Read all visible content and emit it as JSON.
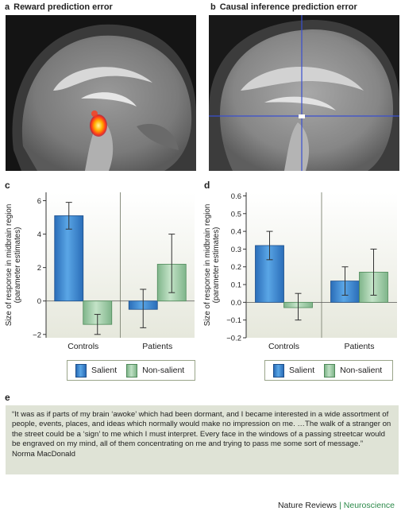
{
  "panel_a": {
    "letter": "a",
    "title": "Reward prediction error"
  },
  "panel_b": {
    "letter": "b",
    "title": "Causal inference prediction error"
  },
  "panel_c": {
    "letter": "c"
  },
  "panel_d": {
    "letter": "d"
  },
  "panel_e": {
    "letter": "e"
  },
  "legend": {
    "salient": "Salient",
    "non_salient": "Non-salient"
  },
  "colors": {
    "salient": "#3b86d4",
    "non_salient": "#9fd0a6",
    "panel_bg": "#e6e8dc",
    "crosshair": "#3a4fd0"
  },
  "chart_data": [
    {
      "type": "bar",
      "panel": "c",
      "categories": [
        "Controls",
        "Patients"
      ],
      "series": [
        {
          "name": "Salient",
          "values": [
            5.1,
            -0.5
          ],
          "err_low": [
            4.3,
            -1.6
          ],
          "err_high": [
            5.9,
            0.7
          ]
        },
        {
          "name": "Non-salient",
          "values": [
            -1.4,
            2.2
          ],
          "err_low": [
            -2.0,
            0.5
          ],
          "err_high": [
            -0.8,
            4.0
          ]
        }
      ],
      "ylabel": "Size of response in midbrain region\n(parameter estimates)",
      "ylim": [
        -2.2,
        6.5
      ],
      "yticks": [
        -2,
        0,
        2,
        4,
        6
      ],
      "ytick_labels": [
        "−2",
        "0",
        "2",
        "4",
        "6"
      ]
    },
    {
      "type": "bar",
      "panel": "d",
      "categories": [
        "Controls",
        "Patients"
      ],
      "series": [
        {
          "name": "Salient",
          "values": [
            0.32,
            0.12
          ],
          "err_low": [
            0.24,
            0.04
          ],
          "err_high": [
            0.4,
            0.2
          ]
        },
        {
          "name": "Non-salient",
          "values": [
            -0.03,
            0.17
          ],
          "err_low": [
            -0.1,
            0.04
          ],
          "err_high": [
            0.05,
            0.3
          ]
        }
      ],
      "ylabel": "Size of response in midbrain region\n(parameter estimates)",
      "ylim": [
        -0.2,
        0.62
      ],
      "yticks": [
        -0.2,
        -0.1,
        0.0,
        0.1,
        0.2,
        0.3,
        0.4,
        0.5,
        0.6
      ],
      "ytick_labels": [
        "−0.2",
        "−0.1",
        "0.0",
        "0.1",
        "0.2",
        "0.3",
        "0.4",
        "0.5",
        "0.6"
      ]
    }
  ],
  "quote": {
    "text": "“It was as if parts of my brain ‘awoke’ which had been dormant, and I became interested in a wide assortment of people, events, places, and ideas which normally would make no impression on me.  …The walk of a stranger on the street could be a ‘sign’ to me which I must interpret. Every face in the windows of a passing streetcar would be engraved on my mind, all of them concentrating on me and trying to pass me some sort of message.”",
    "author": "Norma MacDonald"
  },
  "footer": {
    "publisher": "Nature Reviews",
    "separator": "|",
    "journal": "Neuroscience"
  }
}
